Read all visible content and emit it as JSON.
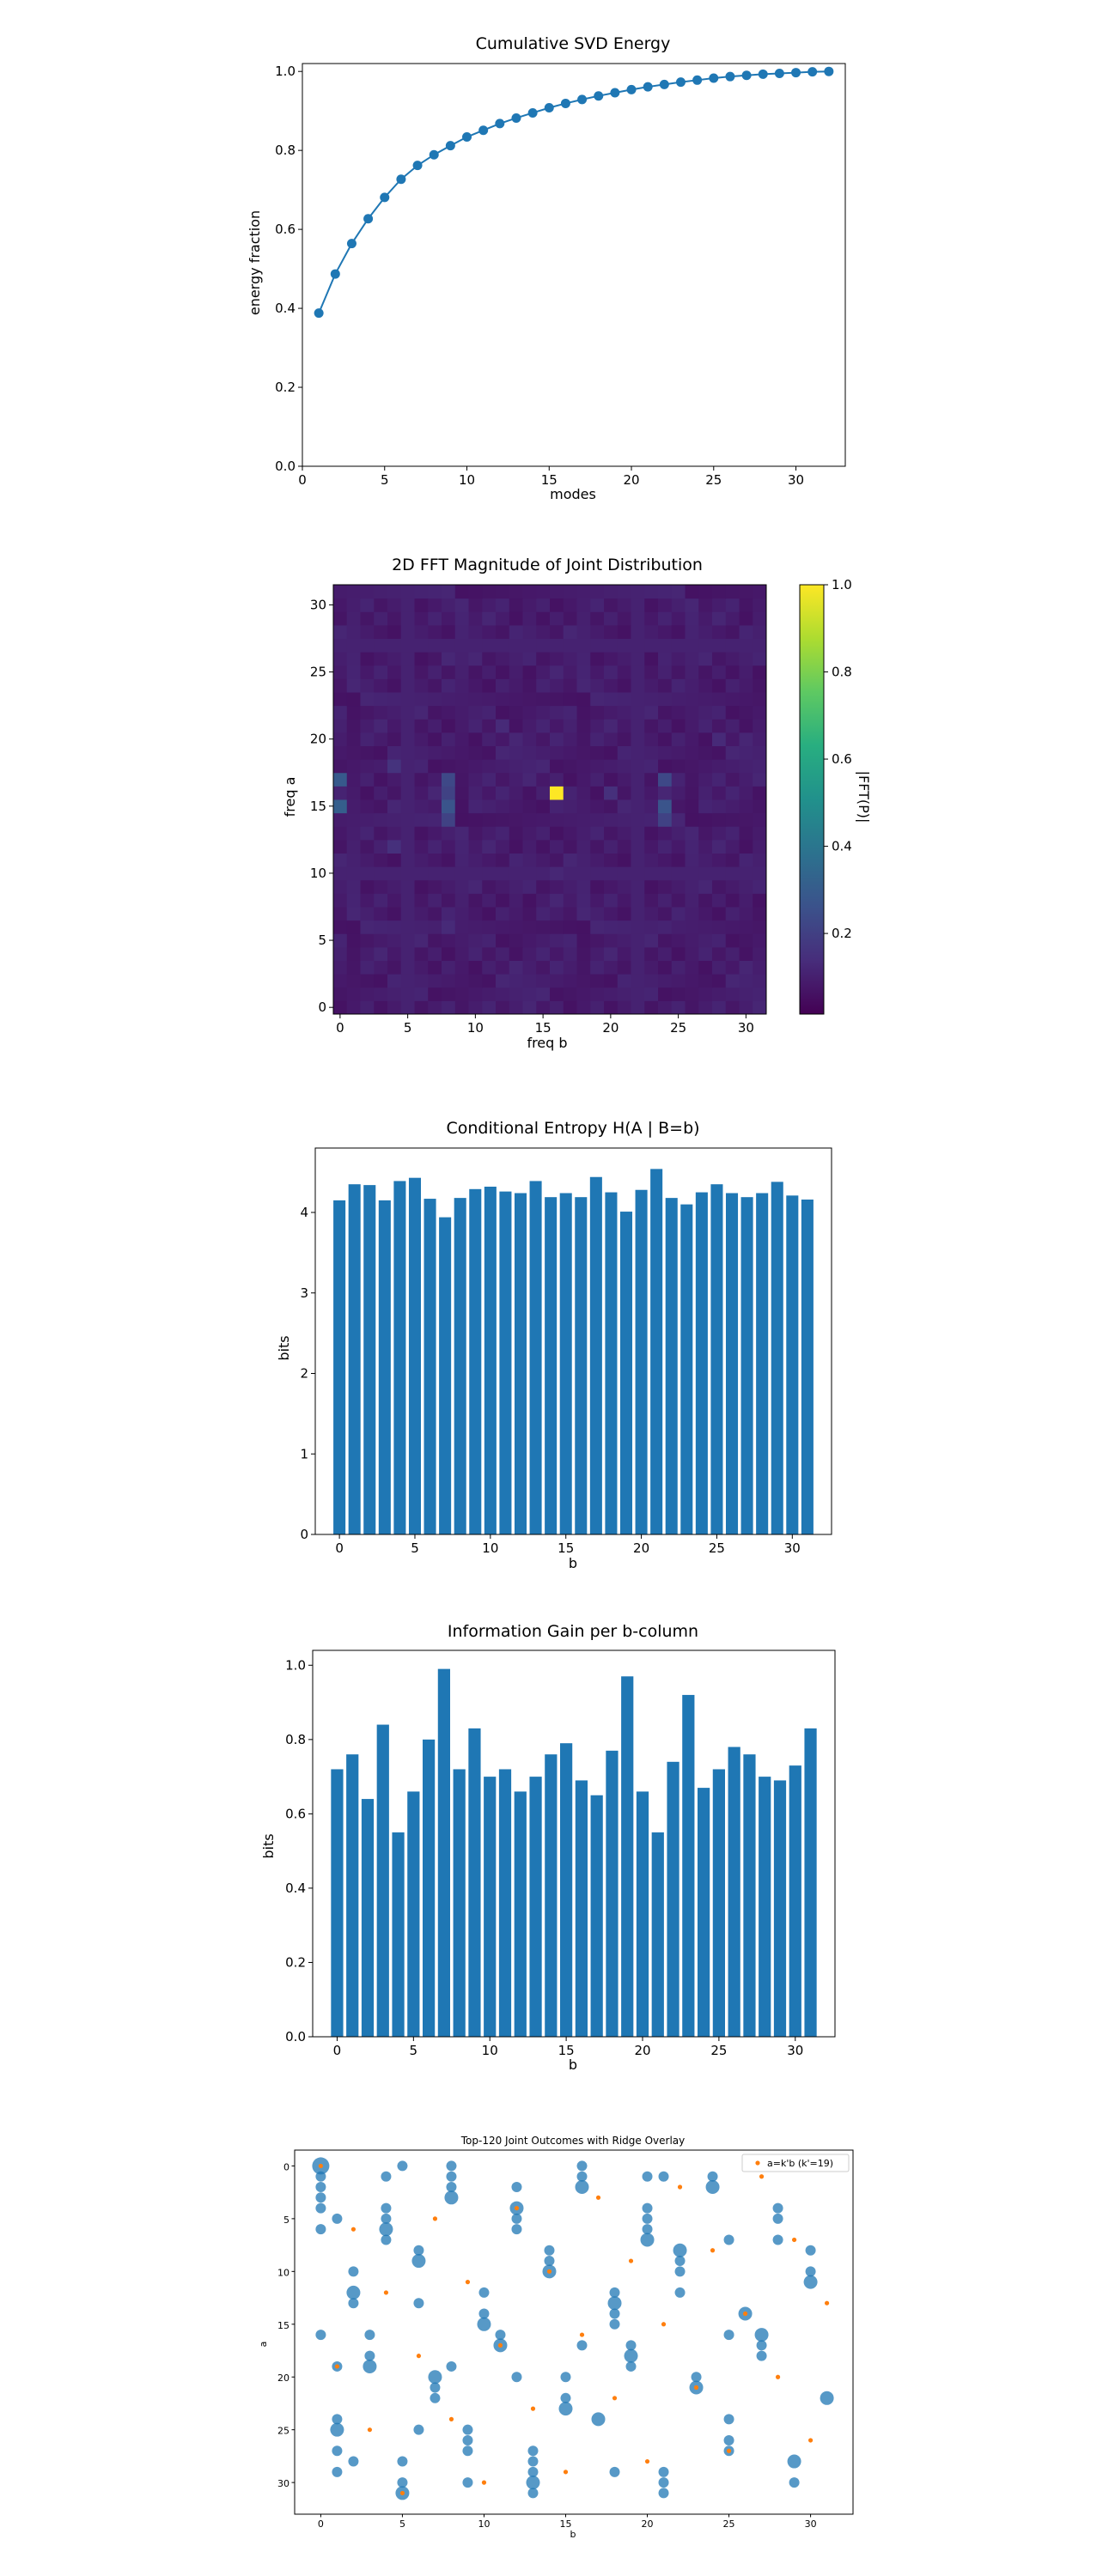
{
  "chart_data": [
    {
      "type": "line",
      "title": "Cumulative SVD Energy",
      "xlabel": "modes",
      "ylabel": "energy fraction",
      "xlim": [
        0,
        33
      ],
      "ylim": [
        0,
        1.02
      ],
      "xticks": [
        "0",
        "5",
        "10",
        "15",
        "20",
        "25",
        "30"
      ],
      "yticks": [
        "0.0",
        "0.2",
        "0.4",
        "0.6",
        "0.8",
        "1.0"
      ],
      "marker": "circle",
      "color": "#1f77b4",
      "x": [
        1,
        2,
        3,
        4,
        5,
        6,
        7,
        8,
        9,
        10,
        11,
        12,
        13,
        14,
        15,
        16,
        17,
        18,
        19,
        20,
        21,
        22,
        23,
        24,
        25,
        26,
        27,
        28,
        29,
        30,
        31,
        32
      ],
      "y": [
        0.388,
        0.487,
        0.564,
        0.627,
        0.681,
        0.727,
        0.762,
        0.789,
        0.812,
        0.834,
        0.851,
        0.868,
        0.882,
        0.895,
        0.908,
        0.919,
        0.929,
        0.938,
        0.946,
        0.954,
        0.961,
        0.967,
        0.973,
        0.978,
        0.983,
        0.987,
        0.99,
        0.993,
        0.995,
        0.997,
        0.999,
        1.0
      ]
    },
    {
      "type": "heatmap",
      "title": "2D FFT Magnitude of Joint Distribution",
      "xlabel": "freq b",
      "ylabel": "freq a",
      "colorbar_label": "|FFT(P)|",
      "colormap": "viridis",
      "xticks": [
        "0",
        "5",
        "10",
        "15",
        "20",
        "25",
        "30"
      ],
      "yticks": [
        "0",
        "5",
        "10",
        "15",
        "20",
        "25",
        "30"
      ],
      "colorbar_ticks": [
        "0.2",
        "0.4",
        "0.6",
        "0.8",
        "1.0"
      ],
      "grid_size": [
        32,
        32
      ],
      "peak": {
        "a": 16,
        "b": 16,
        "value": 1.0
      },
      "background_level": 0.05,
      "highlights": [
        {
          "a": 17,
          "b": 0,
          "value": 0.28
        },
        {
          "a": 15,
          "b": 0,
          "value": 0.3
        },
        {
          "a": 17,
          "b": 8,
          "value": 0.22
        },
        {
          "a": 16,
          "b": 8,
          "value": 0.2
        },
        {
          "a": 15,
          "b": 8,
          "value": 0.26
        },
        {
          "a": 14,
          "b": 8,
          "value": 0.2
        },
        {
          "a": 17,
          "b": 24,
          "value": 0.22
        },
        {
          "a": 15,
          "b": 24,
          "value": 0.26
        },
        {
          "a": 14,
          "b": 24,
          "value": 0.2
        },
        {
          "a": 18,
          "b": 4,
          "value": 0.15
        },
        {
          "a": 16,
          "b": 20,
          "value": 0.14
        },
        {
          "a": 12,
          "b": 4,
          "value": 0.14
        },
        {
          "a": 21,
          "b": 12,
          "value": 0.12
        },
        {
          "a": 20,
          "b": 28,
          "value": 0.12
        },
        {
          "a": 10,
          "b": 16,
          "value": 0.11
        },
        {
          "a": 6,
          "b": 8,
          "value": 0.12
        },
        {
          "a": 26,
          "b": 8,
          "value": 0.11
        },
        {
          "a": 26,
          "b": 24,
          "value": 0.1
        },
        {
          "a": 6,
          "b": 24,
          "value": 0.1
        }
      ]
    },
    {
      "type": "bar",
      "title": "Conditional Entropy H(A | B=b)",
      "xlabel": "b",
      "ylabel": "bits",
      "xlim": [
        -1.6,
        32.6
      ],
      "ylim": [
        0,
        4.8
      ],
      "xticks": [
        "0",
        "5",
        "10",
        "15",
        "20",
        "25",
        "30"
      ],
      "yticks": [
        "0",
        "1",
        "2",
        "3",
        "4"
      ],
      "color": "#1f77b4",
      "categories": [
        0,
        1,
        2,
        3,
        4,
        5,
        6,
        7,
        8,
        9,
        10,
        11,
        12,
        13,
        14,
        15,
        16,
        17,
        18,
        19,
        20,
        21,
        22,
        23,
        24,
        25,
        26,
        27,
        28,
        29,
        30,
        31
      ],
      "values": [
        4.15,
        4.35,
        4.34,
        4.15,
        4.39,
        4.43,
        4.17,
        3.94,
        4.18,
        4.29,
        4.32,
        4.26,
        4.24,
        4.39,
        4.19,
        4.24,
        4.19,
        4.44,
        4.25,
        4.01,
        4.28,
        4.54,
        4.18,
        4.1,
        4.25,
        4.35,
        4.24,
        4.19,
        4.24,
        4.38,
        4.21,
        4.16
      ]
    },
    {
      "type": "bar",
      "title": "Information Gain per b-column",
      "xlabel": "b",
      "ylabel": "bits",
      "xlim": [
        -1.6,
        32.6
      ],
      "ylim": [
        0,
        1.04
      ],
      "xticks": [
        "0",
        "5",
        "10",
        "15",
        "20",
        "25",
        "30"
      ],
      "yticks": [
        "0.0",
        "0.2",
        "0.4",
        "0.6",
        "0.8",
        "1.0"
      ],
      "color": "#1f77b4",
      "categories": [
        0,
        1,
        2,
        3,
        4,
        5,
        6,
        7,
        8,
        9,
        10,
        11,
        12,
        13,
        14,
        15,
        16,
        17,
        18,
        19,
        20,
        21,
        22,
        23,
        24,
        25,
        26,
        27,
        28,
        29,
        30,
        31
      ],
      "values": [
        0.72,
        0.76,
        0.64,
        0.84,
        0.55,
        0.66,
        0.8,
        0.99,
        0.72,
        0.83,
        0.7,
        0.72,
        0.66,
        0.7,
        0.76,
        0.79,
        0.69,
        0.65,
        0.77,
        0.97,
        0.66,
        0.55,
        0.74,
        0.92,
        0.67,
        0.72,
        0.78,
        0.76,
        0.7,
        0.69,
        0.73,
        0.83
      ]
    },
    {
      "type": "scatter",
      "title": "Top-120 Joint Outcomes with Ridge Overlay",
      "xlabel": "b",
      "ylabel": "a",
      "xlim": [
        -1.6,
        32.6
      ],
      "ylim": [
        33,
        -1.5
      ],
      "xticks": [
        "0",
        "5",
        "10",
        "15",
        "20",
        "25",
        "30"
      ],
      "yticks": [
        "0",
        "5",
        "10",
        "15",
        "20",
        "25",
        "30"
      ],
      "legend": "a=k'b (k'=19)",
      "legend_position": "top-right",
      "series": [
        {
          "kind": "outcomes",
          "color": "#1f77b4",
          "points": [
            [
              0,
              0,
              3
            ],
            [
              0,
              1,
              1
            ],
            [
              0,
              2,
              1
            ],
            [
              0,
              3,
              1
            ],
            [
              0,
              4,
              1
            ],
            [
              0,
              6,
              1
            ],
            [
              0,
              16,
              1
            ],
            [
              1,
              5,
              1
            ],
            [
              1,
              19,
              1
            ],
            [
              1,
              24,
              1
            ],
            [
              1,
              25,
              2
            ],
            [
              1,
              27,
              1
            ],
            [
              1,
              29,
              1
            ],
            [
              2,
              10,
              1
            ],
            [
              2,
              12,
              2
            ],
            [
              2,
              13,
              1
            ],
            [
              2,
              28,
              1
            ],
            [
              3,
              18,
              1
            ],
            [
              3,
              19,
              2
            ],
            [
              3,
              16,
              1
            ],
            [
              4,
              1,
              1
            ],
            [
              4,
              4,
              1
            ],
            [
              4,
              5,
              1
            ],
            [
              4,
              6,
              2
            ],
            [
              4,
              7,
              1
            ],
            [
              5,
              0,
              1
            ],
            [
              5,
              28,
              1
            ],
            [
              5,
              30,
              1
            ],
            [
              5,
              31,
              2
            ],
            [
              6,
              8,
              1
            ],
            [
              6,
              9,
              2
            ],
            [
              6,
              13,
              1
            ],
            [
              6,
              25,
              1
            ],
            [
              7,
              20,
              2
            ],
            [
              7,
              21,
              1
            ],
            [
              7,
              22,
              1
            ],
            [
              8,
              0,
              1
            ],
            [
              8,
              1,
              1
            ],
            [
              8,
              2,
              1
            ],
            [
              8,
              3,
              2
            ],
            [
              8,
              19,
              1
            ],
            [
              9,
              25,
              1
            ],
            [
              9,
              26,
              1
            ],
            [
              9,
              27,
              1
            ],
            [
              9,
              30,
              1
            ],
            [
              10,
              12,
              1
            ],
            [
              10,
              14,
              1
            ],
            [
              10,
              15,
              2
            ],
            [
              11,
              16,
              1
            ],
            [
              11,
              17,
              2
            ],
            [
              12,
              2,
              1
            ],
            [
              12,
              4,
              2
            ],
            [
              12,
              5,
              1
            ],
            [
              12,
              6,
              1
            ],
            [
              12,
              20,
              1
            ],
            [
              13,
              27,
              1
            ],
            [
              13,
              28,
              1
            ],
            [
              13,
              29,
              1
            ],
            [
              13,
              30,
              2
            ],
            [
              13,
              31,
              1
            ],
            [
              14,
              8,
              1
            ],
            [
              14,
              9,
              1
            ],
            [
              14,
              10,
              2
            ],
            [
              15,
              20,
              1
            ],
            [
              15,
              22,
              1
            ],
            [
              15,
              23,
              2
            ],
            [
              16,
              0,
              1
            ],
            [
              16,
              1,
              1
            ],
            [
              16,
              2,
              2
            ],
            [
              16,
              17,
              1
            ],
            [
              17,
              24,
              2
            ],
            [
              18,
              12,
              1
            ],
            [
              18,
              13,
              2
            ],
            [
              18,
              14,
              1
            ],
            [
              18,
              15,
              1
            ],
            [
              18,
              29,
              1
            ],
            [
              19,
              17,
              1
            ],
            [
              19,
              18,
              2
            ],
            [
              19,
              19,
              1
            ],
            [
              20,
              1,
              1
            ],
            [
              20,
              4,
              1
            ],
            [
              20,
              5,
              1
            ],
            [
              20,
              6,
              1
            ],
            [
              20,
              7,
              2
            ],
            [
              21,
              1,
              1
            ],
            [
              21,
              29,
              1
            ],
            [
              21,
              30,
              1
            ],
            [
              21,
              31,
              1
            ],
            [
              22,
              8,
              2
            ],
            [
              22,
              9,
              1
            ],
            [
              22,
              10,
              1
            ],
            [
              22,
              12,
              1
            ],
            [
              23,
              20,
              1
            ],
            [
              23,
              21,
              2
            ],
            [
              24,
              1,
              1
            ],
            [
              24,
              2,
              2
            ],
            [
              25,
              7,
              1
            ],
            [
              25,
              16,
              1
            ],
            [
              25,
              24,
              1
            ],
            [
              25,
              26,
              1
            ],
            [
              25,
              27,
              1
            ],
            [
              26,
              14,
              2
            ],
            [
              27,
              16,
              2
            ],
            [
              27,
              17,
              1
            ],
            [
              27,
              18,
              1
            ],
            [
              28,
              4,
              1
            ],
            [
              28,
              5,
              1
            ],
            [
              28,
              7,
              1
            ],
            [
              29,
              28,
              2
            ],
            [
              29,
              30,
              1
            ],
            [
              30,
              8,
              1
            ],
            [
              30,
              10,
              1
            ],
            [
              30,
              11,
              2
            ],
            [
              31,
              22,
              2
            ]
          ]
        },
        {
          "kind": "ridge",
          "name": "a=k'b (k'=19)",
          "color": "#ff7f0e",
          "points": [
            [
              0,
              0
            ],
            [
              1,
              19
            ],
            [
              2,
              6
            ],
            [
              3,
              25
            ],
            [
              4,
              12
            ],
            [
              5,
              31
            ],
            [
              6,
              18
            ],
            [
              7,
              5
            ],
            [
              8,
              24
            ],
            [
              9,
              11
            ],
            [
              10,
              30
            ],
            [
              11,
              17
            ],
            [
              12,
              4
            ],
            [
              13,
              23
            ],
            [
              14,
              10
            ],
            [
              15,
              29
            ],
            [
              16,
              16
            ],
            [
              17,
              3
            ],
            [
              18,
              22
            ],
            [
              19,
              9
            ],
            [
              20,
              28
            ],
            [
              21,
              15
            ],
            [
              22,
              2
            ],
            [
              23,
              21
            ],
            [
              24,
              8
            ],
            [
              25,
              27
            ],
            [
              26,
              14
            ],
            [
              27,
              1
            ],
            [
              28,
              20
            ],
            [
              29,
              7
            ],
            [
              30,
              26
            ],
            [
              31,
              13
            ]
          ]
        }
      ]
    }
  ]
}
